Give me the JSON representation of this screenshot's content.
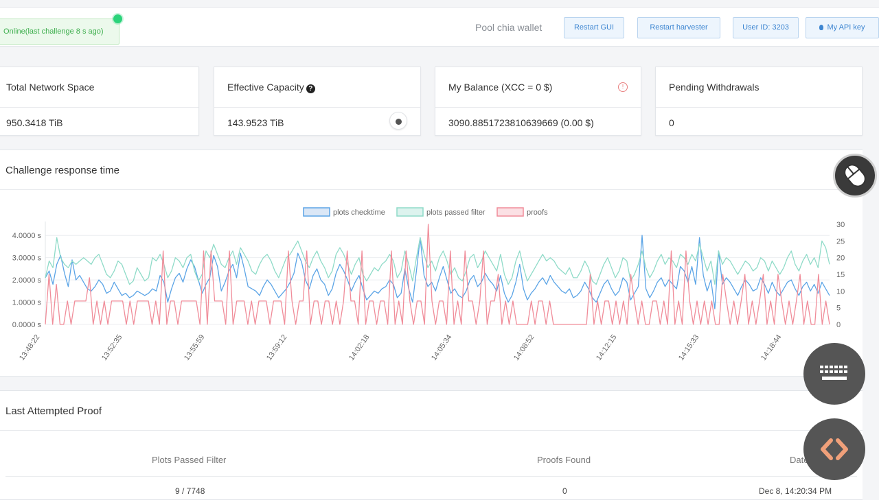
{
  "topbar": {
    "status_text": "Online(last challenge 8 s ago)",
    "pool_label": "Pool chia wallet",
    "buttons": {
      "restart_gui": "Restart GUI",
      "restart_harvester": "Restart harvester",
      "user_id": "User ID: 3203",
      "api_key": "My API key"
    }
  },
  "cards": {
    "network_space": {
      "title": "Total Network Space",
      "value": "950.3418 TiB"
    },
    "effective_capacity": {
      "title": "Effective Capacity",
      "value": "143.9523 TiB"
    },
    "balance": {
      "title": "My Balance (XCC = 0 $)",
      "value": "3090.8851723810639669 (0.00 $)"
    },
    "pending": {
      "title": "Pending Withdrawals",
      "value": "0"
    }
  },
  "chart_section": {
    "title": "Challenge response time"
  },
  "proof_section": {
    "title": "Last Attempted Proof",
    "headers": [
      "Plots Passed Filter",
      "Proofs Found",
      "Date"
    ],
    "row": [
      "9 / 7748",
      "0",
      "Dec 8, 14:20:34 PM"
    ]
  },
  "colors": {
    "checktime": "#5ba4e6",
    "passed_filter": "#8fdbc8",
    "proofs": "#f08c99",
    "status_green": "#3cae4c",
    "button_blue": "#3e86d1"
  },
  "chart_data": {
    "type": "line",
    "legend": [
      "plots checktime",
      "plots passed filter",
      "proofs"
    ],
    "legend_position": "top",
    "x_ticks": [
      "13:48:22",
      "13:52:35",
      "13:55:59",
      "13:59:12",
      "14:02:18",
      "14:05:34",
      "14:08:52",
      "14:12:15",
      "14:15:33",
      "14:18:44"
    ],
    "y_left_ticks": [
      "0.0000 s",
      "1.0000 s",
      "2.0000 s",
      "3.0000 s",
      "4.0000 s"
    ],
    "y_right_ticks": [
      "0",
      "5",
      "10",
      "15",
      "20",
      "25",
      "30"
    ],
    "y_left_range": [
      0,
      4.5
    ],
    "y_right_range": [
      0,
      30
    ],
    "series": [
      {
        "name": "plots checktime",
        "axis": "left",
        "values": [
          2.1,
          2.4,
          1.8,
          2.7,
          3.1,
          2.3,
          1.7,
          2.9,
          2.0,
          2.2,
          1.9,
          1.6,
          1.5,
          1.7,
          2.0,
          1.8,
          1.4,
          1.5,
          1.9,
          1.6,
          1.3,
          1.4,
          1.2,
          1.3,
          1.5,
          1.4,
          1.3,
          1.4,
          1.6,
          1.5,
          2.2,
          1.9,
          1.0,
          1.6,
          2.1,
          2.3,
          1.9,
          2.5,
          2.9,
          2.6,
          2.0,
          1.4,
          1.8,
          2.1,
          3.1,
          2.6,
          1.5,
          1.9,
          2.4,
          2.7,
          2.1,
          3.2,
          2.5,
          1.7,
          1.6,
          1.5,
          1.3,
          1.7,
          2.0,
          1.8,
          1.5,
          1.2,
          1.4,
          1.6,
          1.9,
          2.3,
          3.2,
          2.8,
          2.0,
          1.6,
          2.2,
          2.5,
          2.0,
          1.8,
          1.3,
          1.6,
          2.3,
          2.7,
          2.4,
          2.0,
          1.5,
          1.9,
          2.2,
          1.6,
          1.1,
          1.3,
          1.5,
          1.4,
          1.6,
          1.7,
          2.0,
          1.8,
          1.2,
          1.4,
          2.5,
          1.6,
          1.0,
          2.4,
          3.9,
          2.2,
          1.7,
          1.9,
          1.5,
          2.1,
          2.6,
          2.0,
          1.4,
          1.6,
          1.3,
          1.2,
          1.5,
          2.0,
          2.2,
          1.7,
          1.9,
          2.3,
          2.0,
          1.8,
          1.5,
          2.2,
          1.4,
          1.0,
          1.3,
          1.9,
          2.7,
          1.6,
          1.1,
          1.4,
          1.6,
          1.9,
          2.1,
          1.8,
          2.2,
          1.9,
          1.7,
          1.5,
          1.4,
          1.6,
          1.2,
          1.3,
          1.5,
          1.9,
          1.6,
          1.2,
          1.0,
          1.4,
          1.8,
          2.0,
          1.6,
          1.3,
          1.5,
          2.1,
          1.9,
          1.1,
          1.4,
          1.7,
          4.0,
          1.6,
          1.2,
          1.5,
          1.9,
          2.1,
          1.7,
          2.0,
          1.8,
          1.6,
          2.6,
          2.4,
          1.9,
          2.6,
          1.8,
          3.9,
          2.2,
          1.5,
          2.0,
          0.7,
          3.3,
          1.8,
          2.1,
          1.9,
          1.6,
          1.3,
          1.7,
          2.0,
          1.8,
          1.5,
          1.6,
          2.1,
          1.8,
          1.4,
          1.9,
          1.5,
          1.3,
          1.6,
          1.9,
          2.0,
          1.6,
          1.3,
          1.7,
          1.9,
          1.5,
          1.8,
          1.4,
          1.9,
          1.6,
          1.3
        ]
      },
      {
        "name": "plots passed filter",
        "axis": "right",
        "values": [
          14,
          19,
          17,
          26,
          20,
          18,
          17,
          19,
          18,
          19,
          20,
          19,
          18,
          20,
          21,
          18,
          15,
          14,
          16,
          19,
          18,
          15,
          12,
          13,
          17,
          15,
          13,
          14,
          20,
          19,
          21,
          18,
          14,
          16,
          20,
          19,
          17,
          20,
          21,
          16,
          13,
          15,
          22,
          20,
          24,
          21,
          18,
          17,
          20,
          22,
          18,
          23,
          21,
          19,
          16,
          15,
          18,
          20,
          21,
          19,
          16,
          14,
          17,
          20,
          21,
          23,
          25,
          22,
          19,
          17,
          20,
          22,
          19,
          17,
          14,
          16,
          21,
          23,
          21,
          18,
          15,
          18,
          20,
          15,
          13,
          15,
          17,
          16,
          18,
          19,
          21,
          19,
          14,
          16,
          22,
          18,
          13,
          20,
          26,
          21,
          17,
          19,
          16,
          20,
          22,
          19,
          15,
          17,
          14,
          13,
          16,
          20,
          21,
          17,
          19,
          22,
          20,
          18,
          16,
          21,
          15,
          12,
          14,
          19,
          22,
          17,
          13,
          15,
          17,
          19,
          21,
          19,
          20,
          19,
          17,
          16,
          15,
          17,
          14,
          14,
          16,
          19,
          17,
          13,
          12,
          15,
          18,
          20,
          17,
          14,
          16,
          20,
          19,
          13,
          15,
          18,
          22,
          17,
          14,
          16,
          19,
          21,
          18,
          20,
          19,
          17,
          21,
          20,
          18,
          21,
          19,
          24,
          20,
          16,
          19,
          12,
          22,
          18,
          20,
          19,
          17,
          15,
          17,
          19,
          18,
          16,
          17,
          20,
          19,
          16,
          19,
          17,
          15,
          17,
          20,
          22,
          18,
          16,
          19,
          21,
          18,
          20,
          17,
          25,
          23,
          18
        ]
      },
      {
        "name": "proofs",
        "axis": "right",
        "values": [
          0,
          15,
          0,
          12,
          0,
          0,
          7,
          0,
          7,
          7,
          7,
          7,
          14,
          0,
          7,
          0,
          7,
          0,
          7,
          7,
          7,
          7,
          0,
          7,
          0,
          7,
          7,
          7,
          7,
          0,
          7,
          0,
          22,
          0,
          7,
          7,
          0,
          7,
          7,
          7,
          7,
          7,
          0,
          22,
          0,
          22,
          7,
          7,
          7,
          0,
          22,
          0,
          7,
          7,
          7,
          0,
          7,
          0,
          7,
          7,
          7,
          0,
          7,
          7,
          7,
          0,
          22,
          7,
          0,
          7,
          7,
          22,
          0,
          7,
          7,
          0,
          7,
          7,
          0,
          7,
          0,
          7,
          22,
          7,
          7,
          0,
          22,
          0,
          7,
          7,
          0,
          7,
          7,
          0,
          22,
          0,
          7,
          0,
          22,
          7,
          0,
          7,
          7,
          0,
          30,
          7,
          0,
          7,
          7,
          0,
          22,
          0,
          7,
          0,
          22,
          7,
          7,
          0,
          7,
          22,
          0,
          7,
          7,
          15,
          0,
          7,
          0,
          7,
          0,
          0,
          0,
          0,
          7,
          0,
          7,
          7,
          0,
          7,
          0,
          0,
          0,
          0,
          0,
          0,
          0,
          0,
          0,
          0,
          15,
          0,
          7,
          0,
          7,
          7,
          0,
          7,
          0,
          7,
          0,
          15,
          7,
          0,
          7,
          0,
          0,
          7,
          7,
          0,
          7,
          0,
          22,
          0,
          7,
          0,
          22,
          7,
          0,
          7,
          0,
          7,
          0,
          7,
          0,
          0,
          15,
          7,
          0,
          7,
          0,
          7,
          15,
          0,
          7,
          0,
          7,
          15,
          0,
          7,
          0,
          15,
          7,
          0,
          7,
          0,
          7,
          15,
          0,
          7,
          0,
          0,
          15,
          0,
          7,
          0
        ]
      }
    ]
  }
}
